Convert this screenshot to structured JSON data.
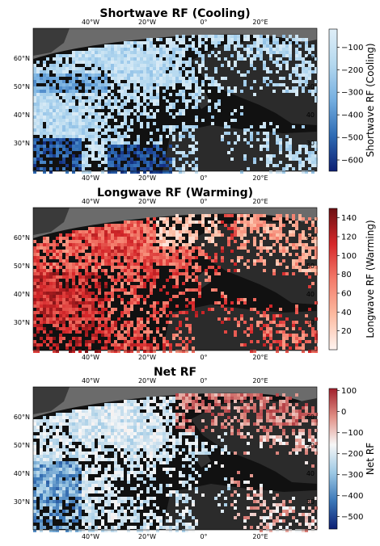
{
  "chart_data": [
    {
      "type": "heatmap",
      "title": "Shortwave RF (Cooling)",
      "colorbar": {
        "label": "Shortwave RF (Cooling)",
        "range": [
          -650,
          -20
        ],
        "ticks": [
          -100,
          -200,
          -300,
          -400,
          -500,
          -600
        ],
        "tick_labels": [
          "−100",
          "−200",
          "−300",
          "−400",
          "−500",
          "−600"
        ],
        "colors": [
          "#0d1f73",
          "#2e6bb4",
          "#74aee0",
          "#b4d8ef",
          "#dfeef7"
        ]
      },
      "x_ticks": [
        "40°W",
        "20°W",
        "0°",
        "20°E"
      ],
      "y_ticks": [
        "60°N",
        "50°N",
        "40°N",
        "30°N"
      ]
    },
    {
      "type": "heatmap",
      "title": "Longwave RF (Warming)",
      "colorbar": {
        "label": "Longwave RF (Warming)",
        "range": [
          0,
          150
        ],
        "ticks": [
          140,
          120,
          100,
          80,
          60,
          40,
          20
        ],
        "tick_labels": [
          "140",
          "120",
          "100",
          "80",
          "60",
          "40",
          "20"
        ],
        "colors": [
          "#fff4f0",
          "#fcbaa0",
          "#f37a6a",
          "#d6272a",
          "#6b0f12"
        ]
      },
      "x_ticks": [
        "40°W",
        "20°W",
        "0°",
        "20°E"
      ],
      "y_ticks": [
        "60°N",
        "50°N",
        "40°N",
        "30°N"
      ]
    },
    {
      "type": "heatmap",
      "title": "Net RF",
      "colorbar": {
        "label": "Net RF",
        "range": [
          -560,
          110
        ],
        "ticks": [
          100,
          0,
          -100,
          -200,
          -300,
          -400,
          -500
        ],
        "tick_labels": [
          "100",
          "0",
          "−100",
          "−200",
          "−300",
          "−400",
          "−500"
        ],
        "colors": [
          "#0d1f73",
          "#3b77b8",
          "#9cc8e4",
          "#f7f7f7",
          "#e18f85",
          "#a11f2b"
        ]
      },
      "x_ticks": [
        "40°W",
        "20°W",
        "0°",
        "20°E"
      ],
      "y_ticks": [
        "60°N",
        "50°N",
        "40°N",
        "30°N"
      ]
    }
  ]
}
